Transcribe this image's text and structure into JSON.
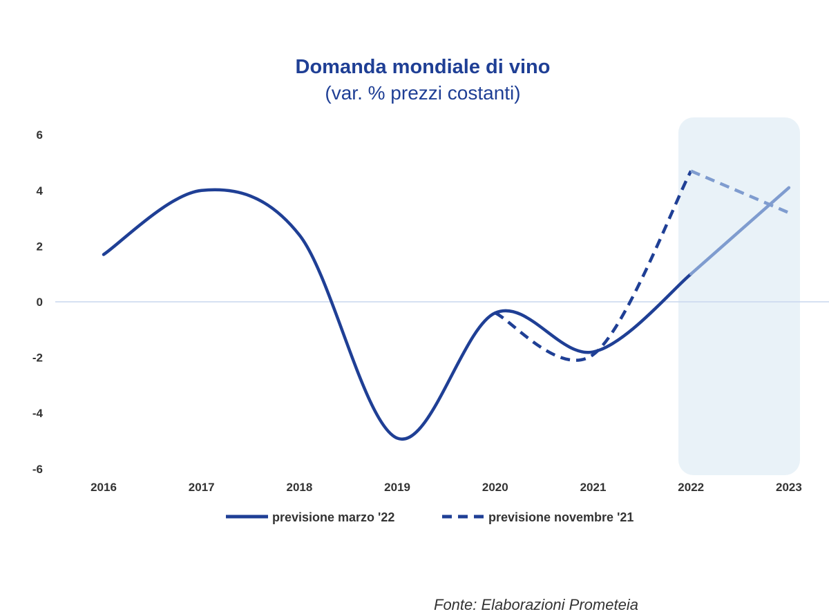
{
  "chart_data": {
    "type": "line",
    "title": "Domanda mondiale di vino",
    "subtitle": "(var. % prezzi costanti)",
    "categories": [
      "2016",
      "2017",
      "2018",
      "2019",
      "2020",
      "2021",
      "2022",
      "2023"
    ],
    "y_ticks": [
      "6",
      "4",
      "2",
      "0",
      "-2",
      "-4",
      "-6"
    ],
    "ylim": [
      -6,
      6
    ],
    "forecast_region": [
      "2022",
      "2023"
    ],
    "series": [
      {
        "name": "previsione marzo '22",
        "style": "solid",
        "color": "#1f3f95",
        "forecast_color": "#7f9ccf",
        "values": [
          1.7,
          4.0,
          2.4,
          -4.9,
          -0.4,
          -1.8,
          1.0,
          4.1
        ]
      },
      {
        "name": "previsione novembre '21",
        "style": "dashed",
        "color": "#1f3f95",
        "forecast_color": "#7f9ccf",
        "values": [
          null,
          null,
          null,
          null,
          -0.4,
          -1.9,
          4.7,
          3.2
        ]
      }
    ],
    "source": "Fonte: Elaborazioni Prometeia",
    "colors": {
      "primary": "#1f3f95",
      "light": "#7f9ccf",
      "shade": "#e9f2f8",
      "zero_line": "#c9d6ee"
    }
  }
}
